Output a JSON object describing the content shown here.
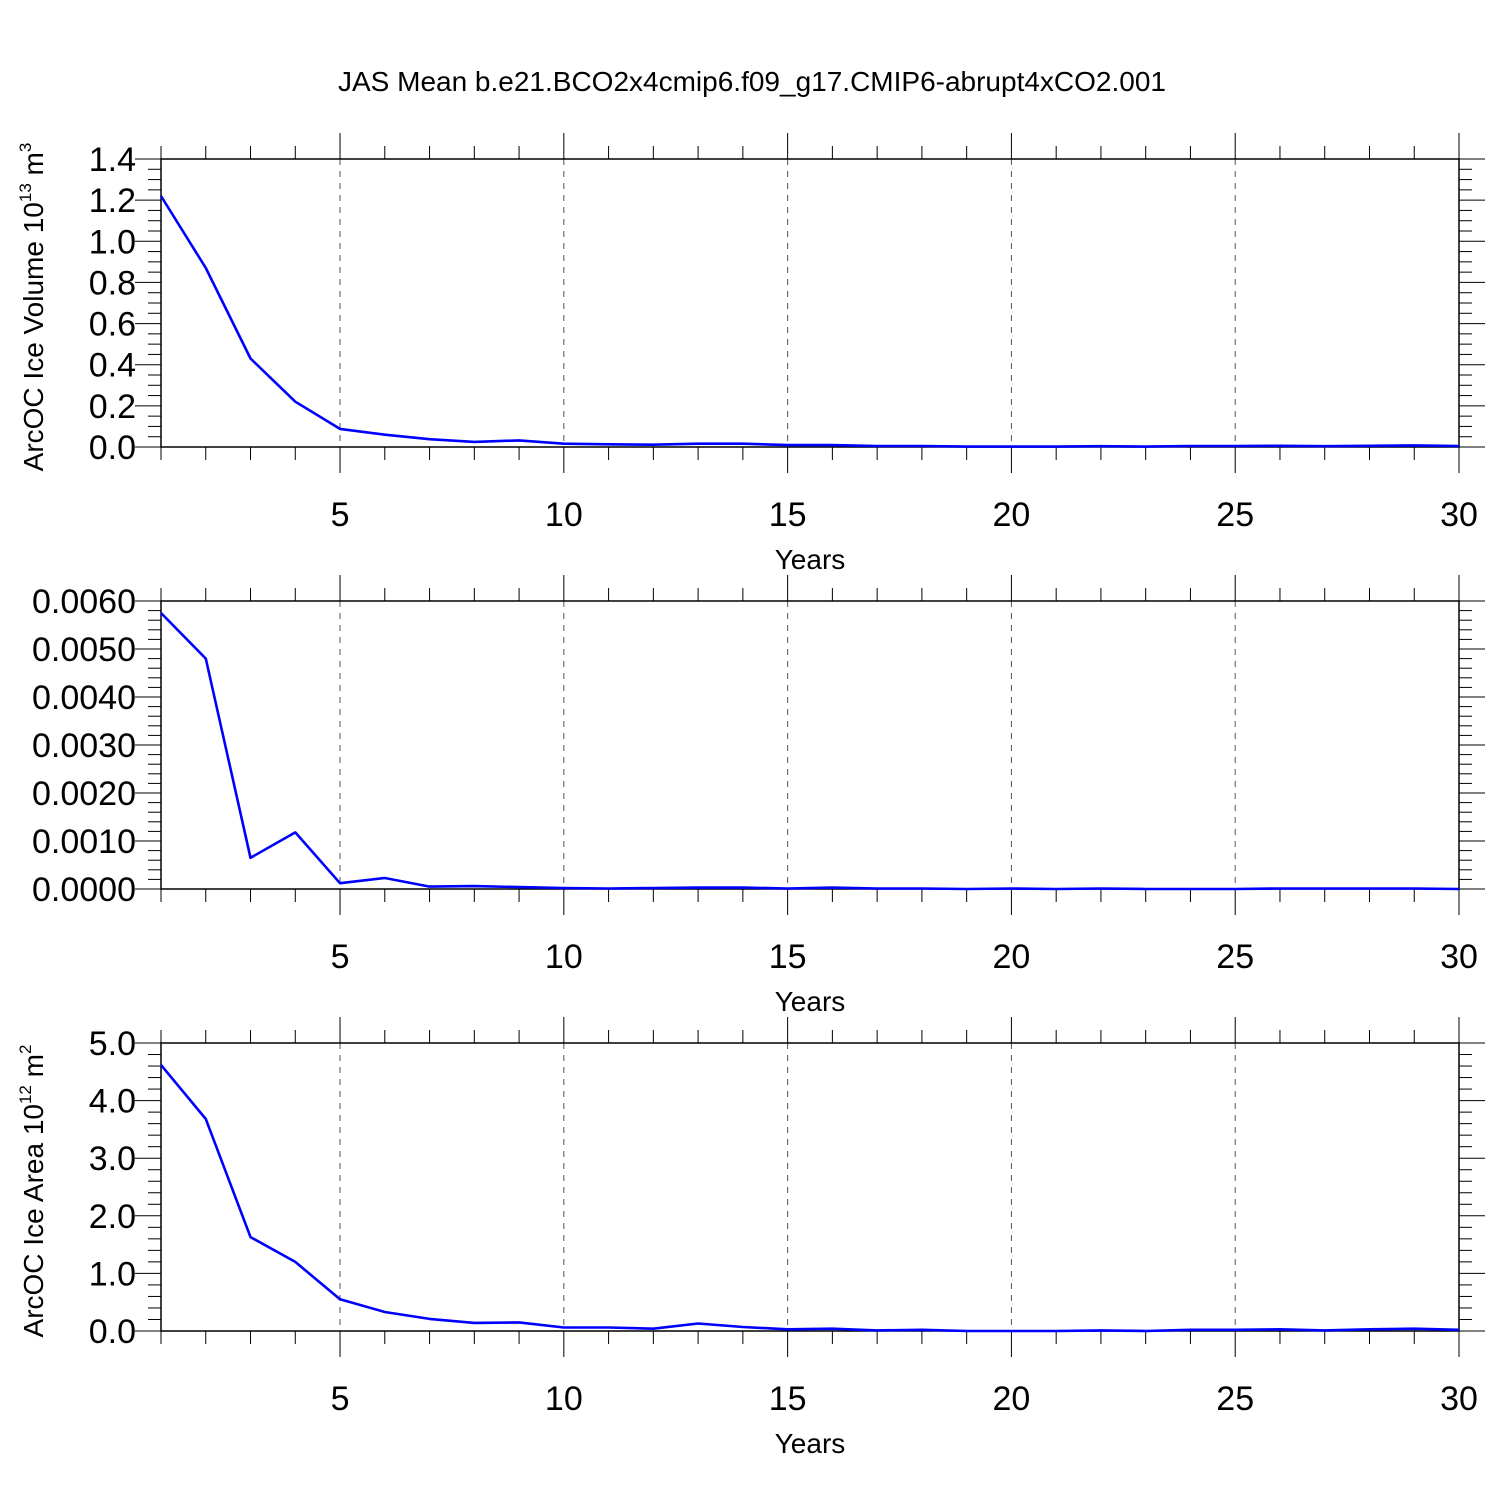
{
  "title": "JAS Mean b.e21.BCO2x4cmip6.f09_g17.CMIP6-abrupt4xCO2.001",
  "line_color": "#0000ff",
  "chart_data": [
    {
      "type": "line",
      "xlabel": "Years",
      "ylabel": "ArcOC Ice Volume 10",
      "ylabel_sup": "13",
      "ylabel_unit": " m",
      "ylabel_unit_sup": "3",
      "xlim": [
        1,
        30
      ],
      "ylim": [
        0,
        1.4
      ],
      "x_ticks": [
        5,
        10,
        15,
        20,
        25,
        30
      ],
      "x_tick_labels": [
        "5",
        "10",
        "15",
        "20",
        "25",
        "30"
      ],
      "y_ticks": [
        0,
        0.2,
        0.4,
        0.6,
        0.8,
        1.0,
        1.2,
        1.4
      ],
      "y_tick_labels": [
        "0.0",
        "0.2",
        "0.4",
        "0.6",
        "0.8",
        "1.0",
        "1.2",
        "1.4"
      ],
      "grid": "vertical dashed at major x ticks",
      "series": [
        {
          "x": [
            1,
            2,
            3,
            4,
            5,
            6,
            7,
            8,
            9,
            10,
            11,
            12,
            13,
            14,
            15,
            16,
            17,
            18,
            19,
            20,
            21,
            22,
            23,
            24,
            25,
            26,
            27,
            28,
            29,
            30
          ],
          "values": [
            1.22,
            0.87,
            0.43,
            0.22,
            0.088,
            0.06,
            0.038,
            0.025,
            0.032,
            0.016,
            0.013,
            0.011,
            0.016,
            0.016,
            0.009,
            0.009,
            0.005,
            0.005,
            0.002,
            0.002,
            0.002,
            0.004,
            0.002,
            0.005,
            0.005,
            0.006,
            0.004,
            0.006,
            0.008,
            0.005
          ]
        }
      ]
    },
    {
      "type": "line",
      "xlabel": "Years",
      "ylabel": "",
      "xlim": [
        1,
        30
      ],
      "ylim": [
        0,
        0.006
      ],
      "x_ticks": [
        5,
        10,
        15,
        20,
        25,
        30
      ],
      "x_tick_labels": [
        "5",
        "10",
        "15",
        "20",
        "25",
        "30"
      ],
      "y_ticks": [
        0,
        0.001,
        0.002,
        0.003,
        0.004,
        0.005,
        0.006
      ],
      "y_tick_labels": [
        "0.0000",
        "0.0010",
        "0.0020",
        "0.0030",
        "0.0040",
        "0.0050",
        "0.0060"
      ],
      "grid": "vertical dashed at major x ticks",
      "series": [
        {
          "x": [
            1,
            2,
            3,
            4,
            5,
            6,
            7,
            8,
            9,
            10,
            11,
            12,
            13,
            14,
            15,
            16,
            17,
            18,
            19,
            20,
            21,
            22,
            23,
            24,
            25,
            26,
            27,
            28,
            29,
            30
          ],
          "values": [
            0.00575,
            0.0048,
            0.00065,
            0.00118,
            0.00012,
            0.00023,
            5e-05,
            6e-05,
            4e-05,
            2e-05,
            1e-05,
            2e-05,
            3e-05,
            3e-05,
            1e-05,
            3e-05,
            1e-05,
            1e-05,
            0.0,
            1e-05,
            0.0,
            1e-05,
            0.0,
            0.0,
            0.0,
            1e-05,
            1e-05,
            1e-05,
            1e-05,
            0.0
          ]
        }
      ]
    },
    {
      "type": "line",
      "xlabel": "Years",
      "ylabel": "ArcOC Ice Area 10",
      "ylabel_sup": "12",
      "ylabel_unit": " m",
      "ylabel_unit_sup": "2",
      "xlim": [
        1,
        30
      ],
      "ylim": [
        0,
        5.0
      ],
      "x_ticks": [
        5,
        10,
        15,
        20,
        25,
        30
      ],
      "x_tick_labels": [
        "5",
        "10",
        "15",
        "20",
        "25",
        "30"
      ],
      "y_ticks": [
        0,
        1,
        2,
        3,
        4,
        5
      ],
      "y_tick_labels": [
        "0.0",
        "1.0",
        "2.0",
        "3.0",
        "4.0",
        "5.0"
      ],
      "grid": "vertical dashed at major x ticks",
      "series": [
        {
          "x": [
            1,
            2,
            3,
            4,
            5,
            6,
            7,
            8,
            9,
            10,
            11,
            12,
            13,
            14,
            15,
            16,
            17,
            18,
            19,
            20,
            21,
            22,
            23,
            24,
            25,
            26,
            27,
            28,
            29,
            30
          ],
          "values": [
            4.62,
            3.68,
            1.63,
            1.2,
            0.55,
            0.33,
            0.21,
            0.14,
            0.15,
            0.06,
            0.06,
            0.04,
            0.13,
            0.07,
            0.03,
            0.04,
            0.01,
            0.02,
            0.0,
            0.0,
            0.0,
            0.01,
            0.0,
            0.02,
            0.02,
            0.03,
            0.01,
            0.03,
            0.04,
            0.02
          ]
        }
      ]
    }
  ]
}
